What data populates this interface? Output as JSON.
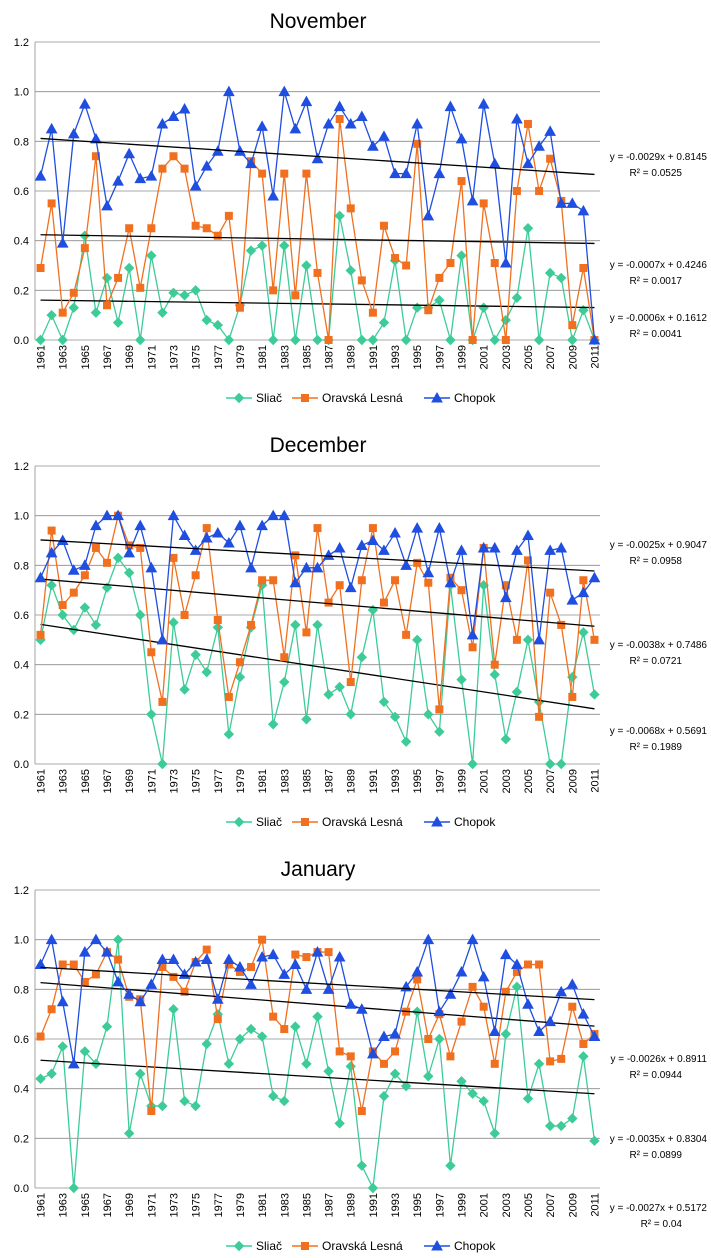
{
  "chart_data": [
    {
      "type": "line",
      "title": "November",
      "legend": "bottom",
      "grid": true,
      "categories": [
        "1961",
        null,
        "1963",
        null,
        "1965",
        null,
        "1967",
        null,
        "1969",
        null,
        "1971",
        null,
        "1973",
        null,
        "1975",
        null,
        "1977",
        null,
        "1979",
        null,
        "1981",
        null,
        "1983",
        null,
        "1985",
        null,
        "1987",
        null,
        "1989",
        null,
        "1991",
        null,
        "1993",
        null,
        "1995",
        null,
        "1997",
        null,
        "1999",
        null,
        "2001",
        null,
        "2003",
        null,
        "2005",
        null,
        "2007",
        null,
        "2009",
        null,
        "2011"
      ],
      "ylim": [
        0,
        1.2
      ],
      "yticks": [
        {
          "value": 0,
          "label": "0.0"
        },
        0.2,
        0.4,
        0.6,
        0.8,
        {
          "value": 1,
          "label": "1.0"
        },
        1.2
      ],
      "series": [
        {
          "name": "Sliač",
          "color": "#3dcc98",
          "marker": "diamond",
          "values": [
            0,
            0.1,
            0,
            0.13,
            0.42,
            0.11,
            0.25,
            0.07,
            0.29,
            0,
            0.34,
            0.11,
            0.19,
            0.18,
            0.2,
            0.08,
            0.06,
            0,
            0.14,
            0.36,
            0.38,
            0,
            0.38,
            0,
            0.3,
            0,
            0,
            0.5,
            0.28,
            0,
            0,
            0.07,
            0.32,
            0,
            0.13,
            0.13,
            0.16,
            0,
            0.34,
            0,
            0.13,
            0,
            0.08,
            0.17,
            0.45,
            0,
            0.27,
            0.25,
            0,
            0.12,
            0
          ],
          "trendline": {
            "equation": "y = -0.0006x + 0.1612",
            "r2": "R² = 0.0041",
            "slope": -0.0006,
            "intercept": 0.1612
          }
        },
        {
          "name": "Oravská Lesná",
          "color": "#f07020",
          "marker": "square",
          "values": [
            0.29,
            0.55,
            0.11,
            0.19,
            0.37,
            0.74,
            0.14,
            0.25,
            0.45,
            0.21,
            0.45,
            0.69,
            0.74,
            0.69,
            0.46,
            0.45,
            0.42,
            0.5,
            0.13,
            0.72,
            0.67,
            0.2,
            0.67,
            0.18,
            0.67,
            0.27,
            0,
            0.89,
            0.53,
            0.24,
            0.11,
            0.46,
            0.33,
            0.3,
            0.79,
            0.12,
            0.25,
            0.31,
            0.64,
            0,
            0.55,
            0.31,
            0,
            0.6,
            0.87,
            0.6,
            0.73,
            0.56,
            0.06,
            0.29,
            0
          ],
          "trendline": {
            "equation": "y = -0.0007x + 0.4246",
            "r2": "R² = 0.0017",
            "slope": -0.0007,
            "intercept": 0.4246
          }
        },
        {
          "name": "Chopok",
          "color": "#1f4ee0",
          "marker": "triangle",
          "values": [
            0.66,
            0.85,
            0.39,
            0.83,
            0.95,
            0.81,
            0.54,
            0.64,
            0.75,
            0.65,
            0.66,
            0.87,
            0.9,
            0.93,
            0.62,
            0.7,
            0.76,
            1.0,
            0.76,
            0.71,
            0.86,
            0.58,
            1.0,
            0.85,
            0.96,
            0.73,
            0.87,
            0.94,
            0.87,
            0.9,
            0.78,
            0.82,
            0.67,
            0.67,
            0.87,
            0.5,
            0.67,
            0.94,
            0.81,
            0.56,
            0.95,
            0.71,
            0.31,
            0.89,
            0.71,
            0.78,
            0.84,
            0.55,
            0.55,
            0.52,
            0
          ],
          "trendline": {
            "equation": "y = -0.0029x + 0.8145",
            "r2": "R² = 0.0525",
            "slope": -0.0029,
            "intercept": 0.8145
          }
        }
      ]
    },
    {
      "type": "line",
      "title": "December",
      "legend": "bottom",
      "grid": true,
      "categories": [
        "1961",
        null,
        "1963",
        null,
        "1965",
        null,
        "1967",
        null,
        "1969",
        null,
        "1971",
        null,
        "1973",
        null,
        "1975",
        null,
        "1977",
        null,
        "1979",
        null,
        "1981",
        null,
        "1983",
        null,
        "1985",
        null,
        "1987",
        null,
        "1989",
        null,
        "1991",
        null,
        "1993",
        null,
        "1995",
        null,
        "1997",
        null,
        "1999",
        null,
        "2001",
        null,
        "2003",
        null,
        "2005",
        null,
        "2007",
        null,
        "2009",
        null,
        "2011"
      ],
      "ylim": [
        0,
        1.2
      ],
      "yticks": [
        {
          "value": 0,
          "label": "0.0"
        },
        0.2,
        0.4,
        0.6,
        0.8,
        {
          "value": 1,
          "label": "1.0"
        },
        1.2
      ],
      "series": [
        {
          "name": "Sliač",
          "color": "#3dcc98",
          "marker": "diamond",
          "values": [
            0.5,
            0.72,
            0.6,
            0.54,
            0.63,
            0.56,
            0.71,
            0.83,
            0.77,
            0.6,
            0.2,
            0,
            0.57,
            0.3,
            0.44,
            0.37,
            0.55,
            0.12,
            0.35,
            0.55,
            0.72,
            0.16,
            0.33,
            0.56,
            0.18,
            0.56,
            0.28,
            0.31,
            0.2,
            0.43,
            0.62,
            0.25,
            0.19,
            0.09,
            0.5,
            0.2,
            0.13,
            0.72,
            0.34,
            0,
            0.72,
            0.36,
            0.1,
            0.29,
            0.5,
            0.25,
            0,
            0,
            0.35,
            0.53,
            0.28
          ],
          "trendline": {
            "equation": "y = -0.0068x + 0.5691",
            "r2": "R² = 0.1989",
            "slope": -0.0068,
            "intercept": 0.5691
          }
        },
        {
          "name": "Oravská Lesná",
          "color": "#f07020",
          "marker": "square",
          "values": [
            0.52,
            0.94,
            0.64,
            0.69,
            0.76,
            0.87,
            0.81,
            1.0,
            0.88,
            0.87,
            0.45,
            0.25,
            0.83,
            0.6,
            0.76,
            0.95,
            0.58,
            0.27,
            0.41,
            0.56,
            0.74,
            0.74,
            0.43,
            0.84,
            0.53,
            0.95,
            0.65,
            0.72,
            0.33,
            0.74,
            0.95,
            0.65,
            0.74,
            0.52,
            0.81,
            0.73,
            0.22,
            0.75,
            0.7,
            0.47,
            0.87,
            0.4,
            0.72,
            0.5,
            0.82,
            0.19,
            0.69,
            0.56,
            0.27,
            0.74,
            0.5
          ],
          "trendline": {
            "equation": "y = -0.0038x + 0.7486",
            "r2": "R² = 0.0721",
            "slope": -0.0038,
            "intercept": 0.7486
          }
        },
        {
          "name": "Chopok",
          "color": "#1f4ee0",
          "marker": "triangle",
          "values": [
            0.75,
            0.85,
            0.9,
            0.78,
            0.8,
            0.96,
            1.0,
            1.0,
            0.85,
            0.96,
            0.79,
            0.5,
            1.0,
            0.92,
            0.86,
            0.91,
            0.93,
            0.89,
            0.96,
            0.79,
            0.96,
            1.0,
            1.0,
            0.73,
            0.79,
            0.79,
            0.84,
            0.87,
            0.71,
            0.88,
            0.9,
            0.86,
            0.93,
            0.8,
            0.95,
            0.77,
            0.95,
            0.73,
            0.86,
            0.52,
            0.87,
            0.87,
            0.67,
            0.86,
            0.92,
            0.5,
            0.86,
            0.87,
            0.66,
            0.69,
            0.75
          ],
          "trendline": {
            "equation": "y = -0.0025x + 0.9047",
            "r2": "R² = 0.0958",
            "slope": -0.0025,
            "intercept": 0.9047
          }
        }
      ]
    },
    {
      "type": "line",
      "title": "January",
      "legend": "bottom",
      "grid": true,
      "categories": [
        "1961",
        null,
        "1963",
        null,
        "1965",
        null,
        "1967",
        null,
        "1969",
        null,
        "1971",
        null,
        "1973",
        null,
        "1975",
        null,
        "1977",
        null,
        "1979",
        null,
        "1981",
        null,
        "1983",
        null,
        "1985",
        null,
        "1987",
        null,
        "1989",
        null,
        "1991",
        null,
        "1993",
        null,
        "1995",
        null,
        "1997",
        null,
        "1999",
        null,
        "2001",
        null,
        "2003",
        null,
        "2005",
        null,
        "2007",
        null,
        "2009",
        null,
        "2011"
      ],
      "ylim": [
        0,
        1.2
      ],
      "yticks": [
        {
          "value": 0,
          "label": "0.0"
        },
        0.2,
        0.4,
        0.6,
        0.8,
        {
          "value": 1,
          "label": "1.0"
        },
        1.2
      ],
      "series": [
        {
          "name": "Sliač",
          "color": "#3dcc98",
          "marker": "diamond",
          "values": [
            0.44,
            0.46,
            0.57,
            0,
            0.55,
            0.5,
            0.65,
            1.0,
            0.22,
            0.46,
            0.33,
            0.33,
            0.72,
            0.35,
            0.33,
            0.58,
            0.7,
            0.5,
            0.6,
            0.64,
            0.61,
            0.37,
            0.35,
            0.65,
            0.5,
            0.69,
            0.47,
            0.26,
            0.49,
            0.09,
            0,
            0.37,
            0.46,
            0.41,
            0.71,
            0.45,
            0.6,
            0.09,
            0.43,
            0.38,
            0.35,
            0.22,
            0.62,
            0.81,
            0.36,
            0.5,
            0.25,
            0.25,
            0.28,
            0.53,
            0.19
          ],
          "trendline": {
            "equation": "y = -0.0027x + 0.5172",
            "r2": "R² = 0.04",
            "slope": -0.0027,
            "intercept": 0.5172
          }
        },
        {
          "name": "Oravská Lesná",
          "color": "#f07020",
          "marker": "square",
          "values": [
            0.61,
            0.72,
            0.9,
            0.9,
            0.83,
            0.86,
            0.95,
            0.92,
            0.77,
            0.76,
            0.31,
            0.89,
            0.85,
            0.79,
            0.91,
            0.96,
            0.68,
            0.9,
            0.87,
            0.89,
            1.0,
            0.69,
            0.64,
            0.94,
            0.93,
            0.95,
            0.95,
            0.55,
            0.53,
            0.31,
            0.55,
            0.5,
            0.55,
            0.71,
            0.84,
            0.6,
            0.7,
            0.53,
            0.67,
            0.81,
            0.73,
            0.5,
            0.79,
            0.87,
            0.9,
            0.9,
            0.51,
            0.52,
            0.73,
            0.58,
            0.62
          ],
          "trendline": {
            "equation": "y = -0.0035x + 0.8304",
            "r2": "R² = 0.0899",
            "slope": -0.0035,
            "intercept": 0.8304
          }
        },
        {
          "name": "Chopok",
          "color": "#1f4ee0",
          "marker": "triangle",
          "values": [
            0.9,
            1.0,
            0.75,
            0.5,
            0.95,
            1.0,
            0.95,
            0.83,
            0.78,
            0.75,
            0.82,
            0.92,
            0.92,
            0.86,
            0.91,
            0.92,
            0.76,
            0.92,
            0.89,
            0.82,
            0.93,
            0.94,
            0.86,
            0.9,
            0.8,
            0.95,
            0.8,
            0.93,
            0.74,
            0.72,
            0.54,
            0.61,
            0.62,
            0.81,
            0.87,
            1.0,
            0.71,
            0.78,
            0.87,
            1.0,
            0.85,
            0.63,
            0.94,
            0.9,
            0.74,
            0.63,
            0.67,
            0.79,
            0.82,
            0.7,
            0.61
          ],
          "trendline": {
            "equation": "y = -0.0026x + 0.8911",
            "r2": "R² = 0.0944",
            "slope": -0.0026,
            "intercept": 0.8911
          }
        }
      ]
    }
  ]
}
